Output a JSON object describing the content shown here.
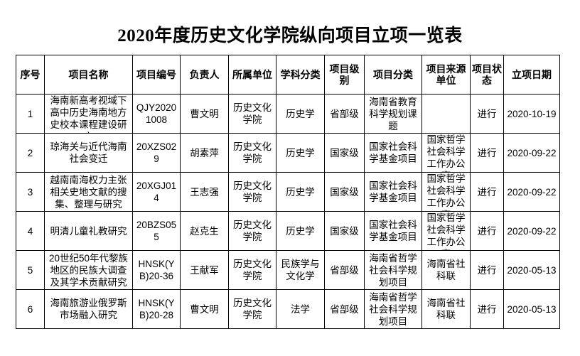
{
  "title": "2020年度历史文化学院纵向项目立项一览表",
  "columns": [
    "序号",
    "项目名称",
    "项目编号",
    "负责人",
    "所属单位",
    "学科分类",
    "项目级别",
    "项目分类",
    "项目来源单位",
    "项目状态",
    "立项日期"
  ],
  "rows": [
    [
      "1",
      "海南新高考视域下高中历史海南地方史校本课程建设研究",
      "QJY20201008",
      "曹文明",
      "历史文化学院",
      "历史学",
      "省部级",
      "海南省教育科学规划课题",
      "",
      "进行",
      "2020-10-19"
    ],
    [
      "2",
      "琼海关与近代海南社会变迁",
      "20XZS029",
      "胡素萍",
      "历史文化学院",
      "历史学",
      "国家级",
      "国家社会科学基金项目",
      "国家哲学社会科学工作办公室",
      "进行",
      "2020-09-22"
    ],
    [
      "3",
      "越南南海权力主张相关史地文献的搜集、整理与研究",
      "20XGJ014",
      "王志强",
      "历史文化学院",
      "历史学",
      "国家级",
      "国家社会科学基金项目",
      "国家哲学社会科学工作办公室",
      "进行",
      "2020-09-22"
    ],
    [
      "4",
      "明清儿童礼教研究",
      "20BZS055",
      "赵克生",
      "历史文化学院",
      "历史学",
      "国家级",
      "国家社会科学基金项目",
      "国家哲学社会科学工作办公室",
      "进行",
      "2020-09-22"
    ],
    [
      "5",
      "20世纪50年代黎族地区的民族大调查及其学术贡献研究",
      "HNSK(YB)20-36",
      "王献军",
      "历史文化学院",
      "民族学与文化学",
      "省部级",
      "海南省哲学社会科学规划项目",
      "海南省社科联",
      "进行",
      "2020-05-13"
    ],
    [
      "6",
      "海南旅游业俄罗斯市场融入研究",
      "HNSK(YB)20-28",
      "曹文明",
      "历史文化学院",
      "法学",
      "省部级",
      "海南省哲学社会科学规划项目",
      "海南省社科联",
      "进行",
      "2020-05-13"
    ]
  ]
}
